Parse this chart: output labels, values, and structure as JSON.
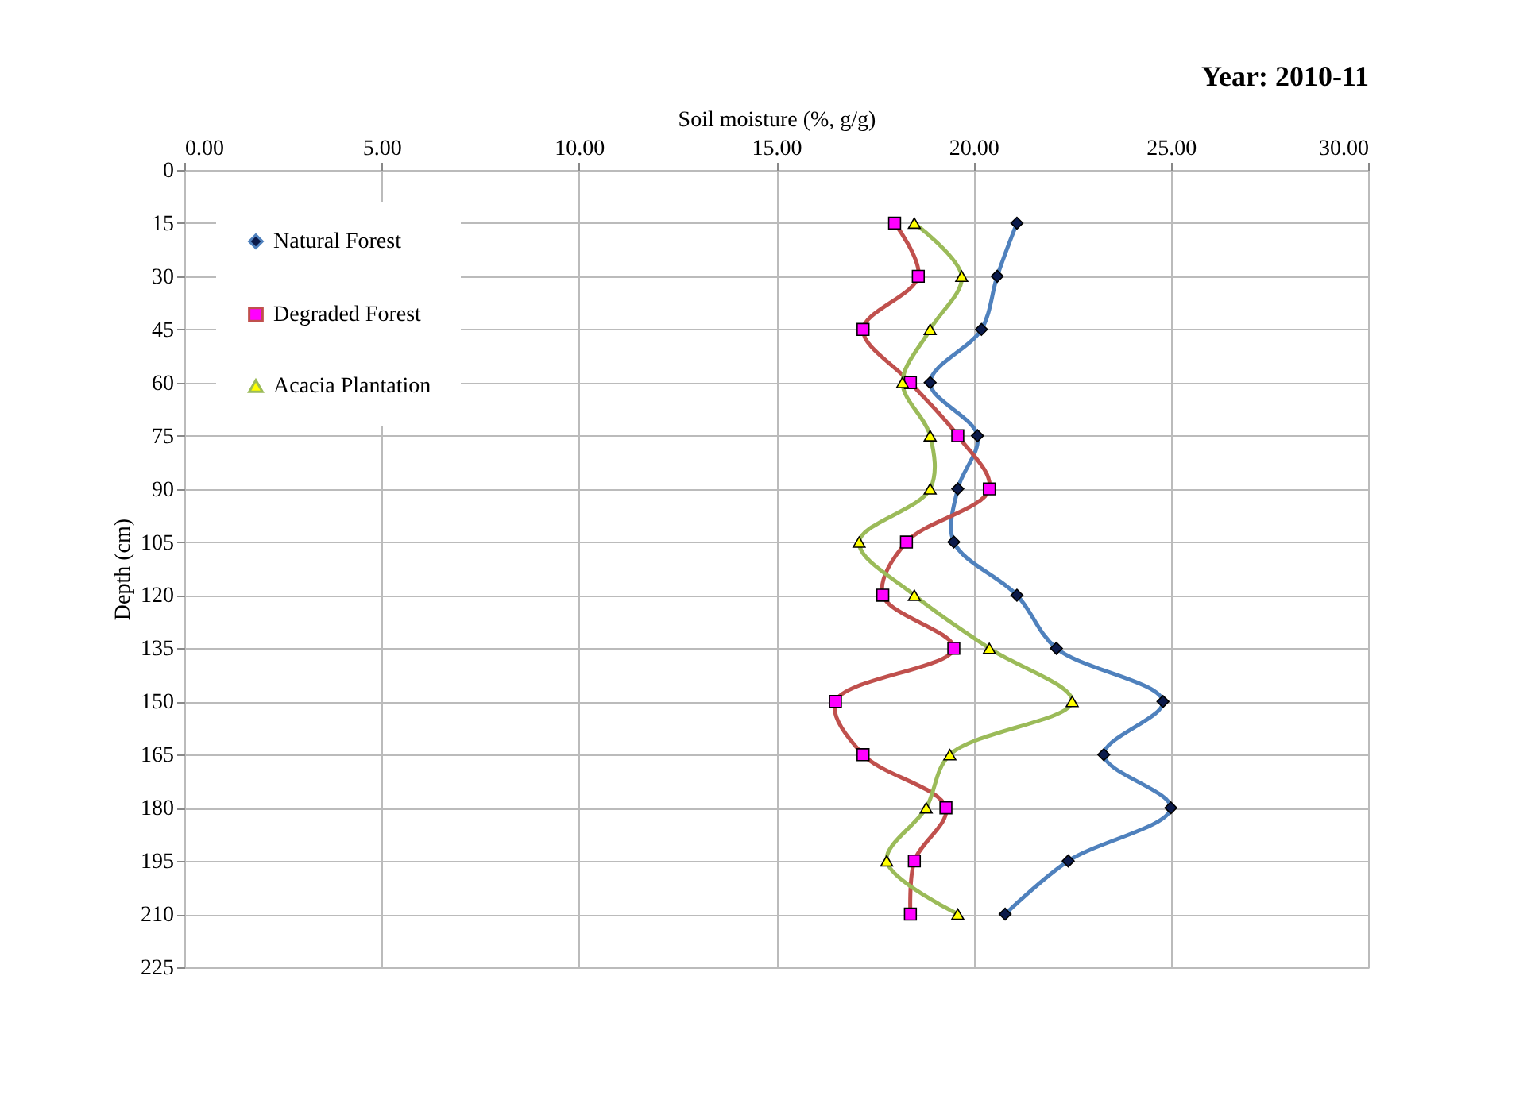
{
  "chart_data": {
    "type": "line",
    "title": "Year: 2010-11",
    "xlabel": "Soil moisture (%, g/g)",
    "ylabel": "Depth (cm)",
    "series": [
      {
        "name": "Natural Forest",
        "color": "#4f81bd",
        "marker": "diamond",
        "x": [
          21.1,
          20.6,
          20.2,
          18.9,
          20.1,
          19.6,
          19.5,
          21.1,
          22.1,
          24.8,
          23.3,
          25.0,
          22.4,
          20.8
        ],
        "values": [
          15,
          30,
          45,
          60,
          75,
          90,
          105,
          120,
          135,
          150,
          165,
          180,
          195,
          210
        ]
      },
      {
        "name": "Degraded Forest",
        "color": "#c0504d",
        "marker": "square",
        "x": [
          18.0,
          18.6,
          17.2,
          18.4,
          19.6,
          20.4,
          18.3,
          17.7,
          19.5,
          16.5,
          17.2,
          19.3,
          18.5,
          18.4
        ],
        "values": [
          15,
          30,
          45,
          60,
          75,
          90,
          105,
          120,
          135,
          150,
          165,
          180,
          195,
          210
        ]
      },
      {
        "name": "Acacia Plantation",
        "color": "#9bbb59",
        "marker": "triangle",
        "x": [
          18.5,
          19.7,
          18.9,
          18.2,
          18.9,
          18.9,
          17.1,
          18.5,
          20.4,
          22.5,
          19.4,
          18.8,
          17.8,
          19.6
        ],
        "values": [
          15,
          30,
          45,
          60,
          75,
          90,
          105,
          120,
          135,
          150,
          165,
          180,
          195,
          210
        ]
      }
    ],
    "xlim": [
      0,
      30
    ],
    "xticks": [
      {
        "value": 0,
        "label": "0.00"
      },
      {
        "value": 5,
        "label": "5.00"
      },
      {
        "value": 10,
        "label": "10.00"
      },
      {
        "value": 15,
        "label": "15.00"
      },
      {
        "value": 20,
        "label": "20.00"
      },
      {
        "value": 25,
        "label": "25.00"
      },
      {
        "value": 30,
        "label": "30.00"
      }
    ],
    "ylim": [
      225,
      0
    ],
    "yticks": [
      0,
      15,
      30,
      45,
      60,
      75,
      90,
      105,
      120,
      135,
      150,
      165,
      180,
      195,
      210,
      225
    ],
    "grid": true,
    "legend": "top left",
    "line_style": "solid"
  }
}
